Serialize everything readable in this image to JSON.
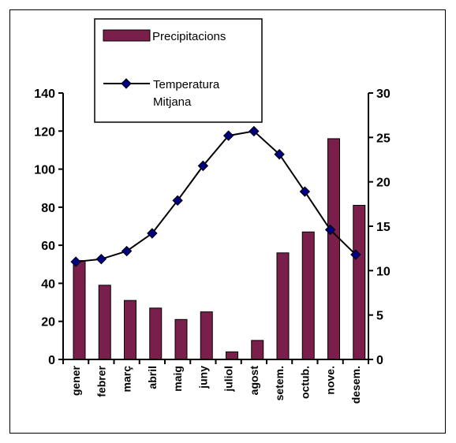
{
  "chart_data": {
    "type": "bar+line",
    "categories": [
      "gener",
      "febrer",
      "març",
      "abril",
      "maig",
      "juny",
      "juliol",
      "agost",
      "setem.",
      "octub.",
      "nove.",
      "desem."
    ],
    "series": [
      {
        "name": "Precipitacions",
        "type": "bar",
        "axis": "left",
        "color": "#7a1f4c",
        "values": [
          52,
          39,
          31,
          27,
          21,
          25,
          4,
          10,
          56,
          67,
          116,
          81
        ]
      },
      {
        "name": "Temperatura Mitjana",
        "name_lines": [
          "Temperatura",
          "Mitjana"
        ],
        "type": "line",
        "axis": "right",
        "color": "#000080",
        "marker": "diamond",
        "values": [
          11.0,
          11.3,
          12.2,
          14.2,
          17.9,
          21.8,
          25.2,
          25.7,
          23.1,
          18.9,
          14.6,
          11.8
        ]
      }
    ],
    "y_left": {
      "min": 0,
      "max": 140,
      "step": 20,
      "ticks": [
        "0",
        "20",
        "40",
        "60",
        "80",
        "100",
        "120",
        "140"
      ]
    },
    "y_right": {
      "min": 0,
      "max": 30,
      "step": 5,
      "ticks": [
        "0",
        "5",
        "10",
        "15",
        "20",
        "25",
        "30"
      ]
    },
    "grid": false,
    "legend_position": "top-left"
  }
}
